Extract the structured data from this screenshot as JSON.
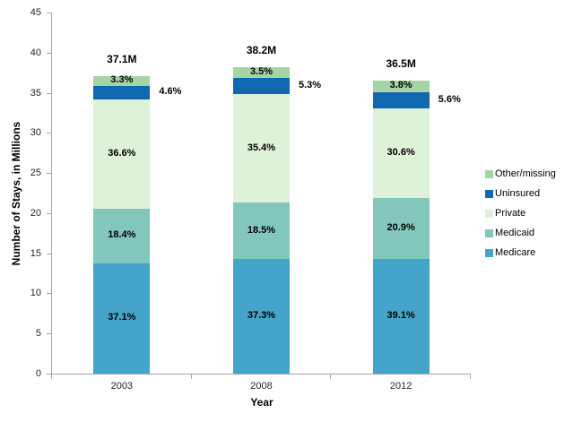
{
  "chart_data": {
    "type": "bar",
    "subtype": "stacked-vertical",
    "title": "",
    "xlabel": "Year",
    "ylabel": "Number of Stays, in Millions",
    "ylim": [
      0,
      45
    ],
    "ytick_step": 5,
    "grid": false,
    "legend_position": "right",
    "categories": [
      "2003",
      "2008",
      "2012"
    ],
    "totals": [
      37.1,
      38.2,
      36.5
    ],
    "total_labels": [
      "37.1M",
      "38.2M",
      "36.5M"
    ],
    "series": [
      {
        "name": "Medicare",
        "color": "#45a4c9",
        "percents": [
          37.1,
          37.3,
          39.1
        ],
        "label_outside": false
      },
      {
        "name": "Medicaid",
        "color": "#83c7bc",
        "percents": [
          18.4,
          18.5,
          20.9
        ],
        "label_outside": false
      },
      {
        "name": "Private",
        "color": "#def2d9",
        "percents": [
          36.6,
          35.4,
          30.6
        ],
        "label_outside": false
      },
      {
        "name": "Uninsured",
        "color": "#1068b0",
        "percents": [
          4.6,
          5.3,
          5.6
        ],
        "label_outside": true
      },
      {
        "name": "Other/missing",
        "color": "#a5d4a7",
        "percents": [
          3.3,
          3.5,
          3.8
        ],
        "label_outside": false
      }
    ],
    "legend": [
      "Other/missing",
      "Uninsured",
      "Private",
      "Medicaid",
      "Medicare"
    ],
    "colors": {
      "axis_line": "#a6a6a6",
      "tick_text": "#262626",
      "label_text": "#000000"
    }
  }
}
